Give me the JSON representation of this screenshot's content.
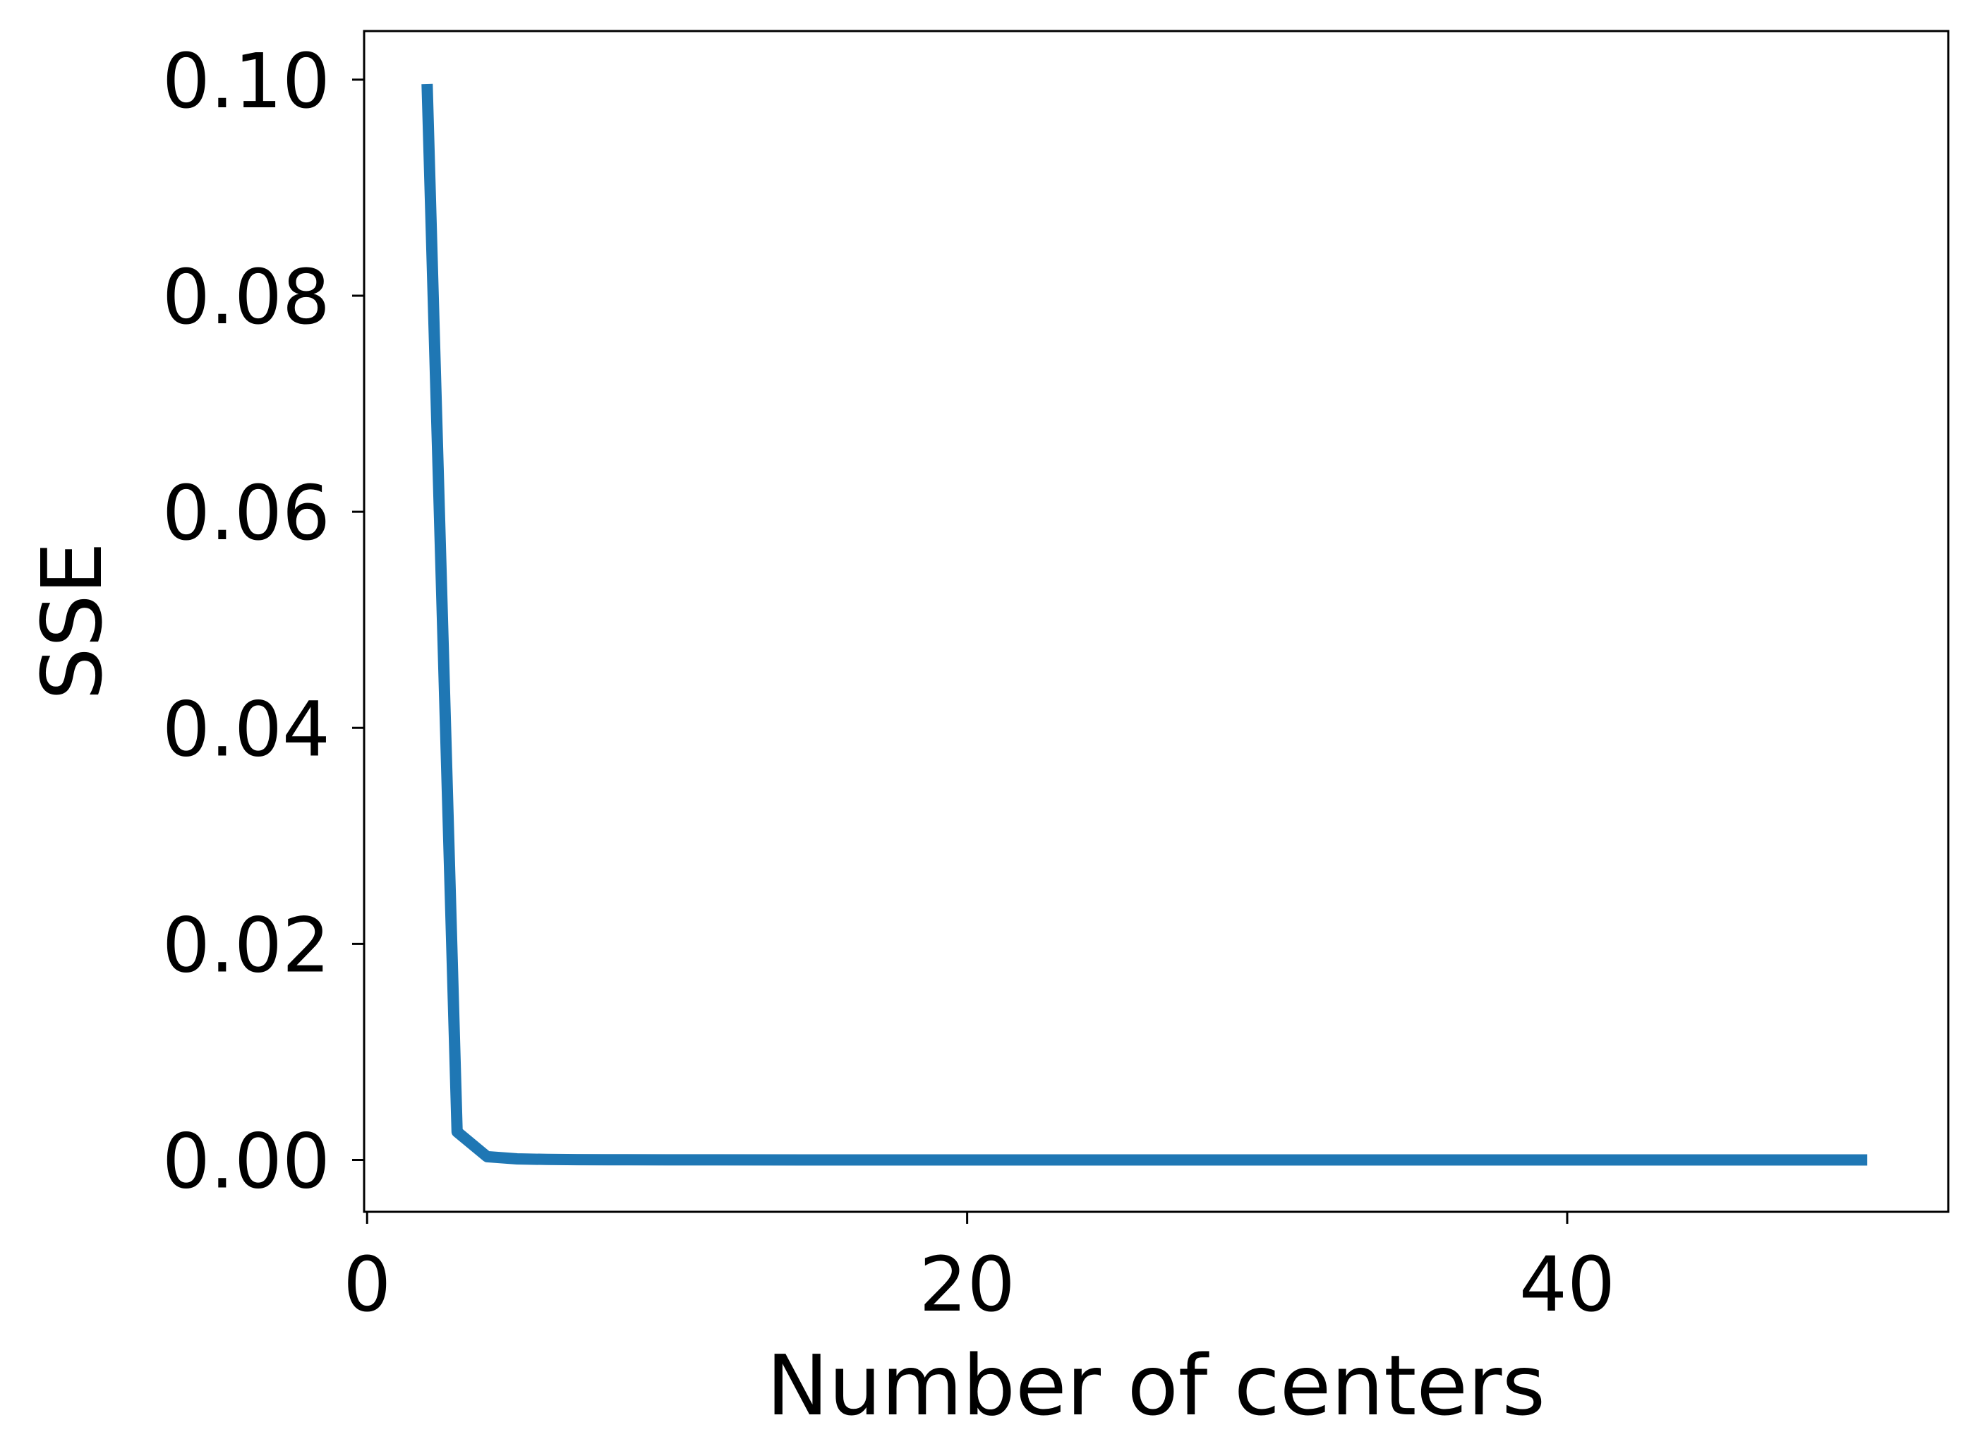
{
  "chart_data": {
    "type": "line",
    "title": "",
    "xlabel": "Number of centers",
    "ylabel": "SSE",
    "xlim": [
      -0.1,
      52.7
    ],
    "ylim": [
      -0.0048,
      0.1045
    ],
    "xticks": [
      0,
      20,
      40
    ],
    "xtick_labels": [
      "0",
      "20",
      "40"
    ],
    "yticks": [
      0.0,
      0.02,
      0.04,
      0.06,
      0.08,
      0.1
    ],
    "ytick_labels": [
      "0.00",
      "0.02",
      "0.04",
      "0.06",
      "0.08",
      "0.10"
    ],
    "grid": false,
    "legend": "none",
    "series": [
      {
        "color": "#1f77b4",
        "x": [
          2,
          3,
          4,
          5,
          6,
          7,
          8,
          10,
          15,
          20,
          30,
          40,
          50
        ],
        "y": [
          0.0996,
          0.0026,
          0.0003,
          0.0001,
          5e-05,
          3e-05,
          2e-05,
          1e-05,
          0.0,
          0.0,
          0.0,
          0.0,
          0.0
        ]
      }
    ]
  }
}
